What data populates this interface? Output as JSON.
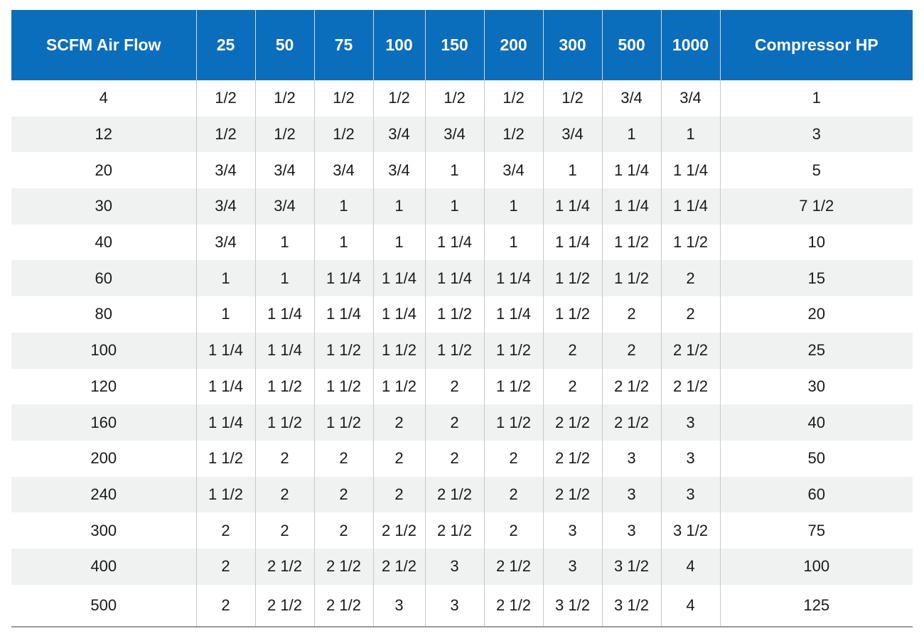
{
  "table": {
    "headers": [
      "SCFM Air Flow",
      "25",
      "50",
      "75",
      "100",
      "150",
      "200",
      "300",
      "500",
      "1000",
      "Compressor HP"
    ],
    "rows": [
      [
        "4",
        "1/2",
        "1/2",
        "1/2",
        "1/2",
        "1/2",
        "1/2",
        "1/2",
        "3/4",
        "3/4",
        "1"
      ],
      [
        "12",
        "1/2",
        "1/2",
        "1/2",
        "3/4",
        "3/4",
        "1/2",
        "3/4",
        "1",
        "1",
        "3"
      ],
      [
        "20",
        "3/4",
        "3/4",
        "3/4",
        "3/4",
        "1",
        "3/4",
        "1",
        "1 1/4",
        "1 1/4",
        "5"
      ],
      [
        "30",
        "3/4",
        "3/4",
        "1",
        "1",
        "1",
        "1",
        "1 1/4",
        "1 1/4",
        "1 1/4",
        "7 1/2"
      ],
      [
        "40",
        "3/4",
        "1",
        "1",
        "1",
        "1 1/4",
        "1",
        "1 1/4",
        "1 1/2",
        "1 1/2",
        "10"
      ],
      [
        "60",
        "1",
        "1",
        "1 1/4",
        "1 1/4",
        "1 1/4",
        "1 1/4",
        "1 1/2",
        "1 1/2",
        "2",
        "15"
      ],
      [
        "80",
        "1",
        "1 1/4",
        "1 1/4",
        "1 1/4",
        "1 1/2",
        "1 1/4",
        "1 1/2",
        "2",
        "2",
        "20"
      ],
      [
        "100",
        "1 1/4",
        "1 1/4",
        "1 1/2",
        "1 1/2",
        "1 1/2",
        "1 1/2",
        "2",
        "2",
        "2 1/2",
        "25"
      ],
      [
        "120",
        "1 1/4",
        "1 1/2",
        "1 1/2",
        "1 1/2",
        "2",
        "1 1/2",
        "2",
        "2 1/2",
        "2 1/2",
        "30"
      ],
      [
        "160",
        "1 1/4",
        "1 1/2",
        "1 1/2",
        "2",
        "2",
        "1 1/2",
        "2 1/2",
        "2 1/2",
        "3",
        "40"
      ],
      [
        "200",
        "1 1/2",
        "2",
        "2",
        "2",
        "2",
        "2",
        "2 1/2",
        "3",
        "3",
        "50"
      ],
      [
        "240",
        "1 1/2",
        "2",
        "2",
        "2",
        "2 1/2",
        "2",
        "2 1/2",
        "3",
        "3",
        "60"
      ],
      [
        "300",
        "2",
        "2",
        "2",
        "2 1/2",
        "2 1/2",
        "2",
        "3",
        "3",
        "3 1/2",
        "75"
      ],
      [
        "400",
        "2",
        "2 1/2",
        "2 1/2",
        "2 1/2",
        "3",
        "2 1/2",
        "3",
        "3 1/2",
        "4",
        "100"
      ],
      [
        "500",
        "2",
        "2 1/2",
        "2 1/2",
        "3",
        "3",
        "2 1/2",
        "3 1/2",
        "3 1/2",
        "4",
        "125"
      ]
    ]
  },
  "colors": {
    "header_bg": "#0a6ebd",
    "header_text": "#ffffff",
    "stripe_bg": "#f0f2f2"
  }
}
